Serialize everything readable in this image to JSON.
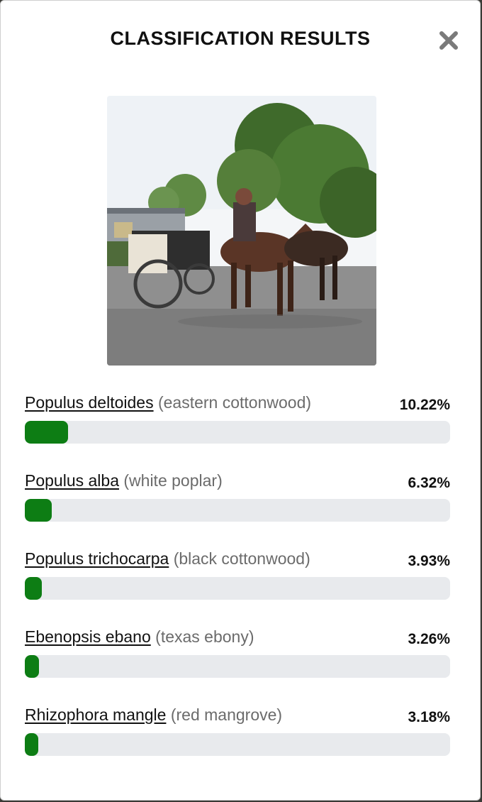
{
  "modal": {
    "title": "CLASSIFICATION RESULTS",
    "close_icon": "close-x-icon",
    "photo_description_icon": "uploaded-photo"
  },
  "results": [
    {
      "scientific": "Populus deltoides",
      "common": "(eastern cottonwood)",
      "percent_label": "10.22%",
      "percent": 10.22
    },
    {
      "scientific": "Populus alba",
      "common": "(white poplar)",
      "percent_label": "6.32%",
      "percent": 6.32
    },
    {
      "scientific": "Populus trichocarpa",
      "common": "(black cottonwood)",
      "percent_label": "3.93%",
      "percent": 3.93
    },
    {
      "scientific": "Ebenopsis ebano",
      "common": "(texas ebony)",
      "percent_label": "3.26%",
      "percent": 3.26
    },
    {
      "scientific": "Rhizophora mangle",
      "common": "(red mangrove)",
      "percent_label": "3.18%",
      "percent": 3.18
    }
  ],
  "colors": {
    "bar_fill": "#0d7d14",
    "bar_track": "#e8eaed",
    "common_name_text": "#6b6b6b"
  }
}
